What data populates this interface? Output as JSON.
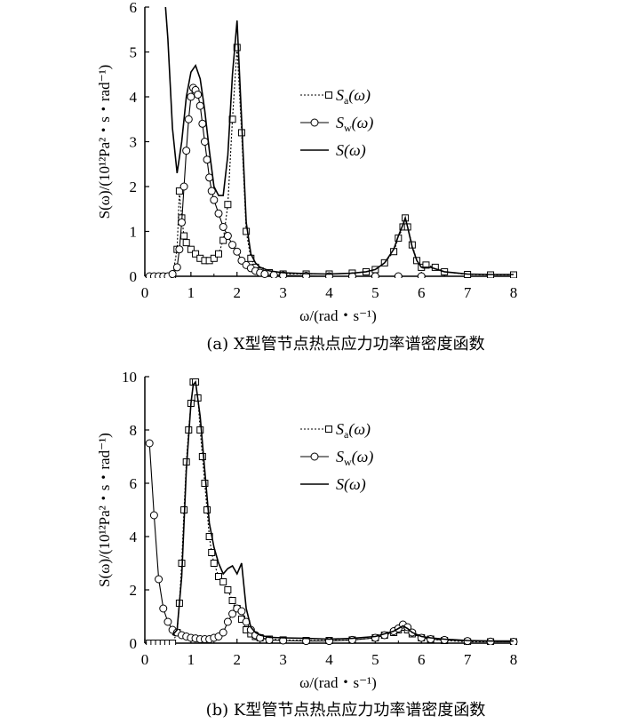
{
  "chart_data": [
    {
      "type": "line",
      "panel": "a",
      "caption": "(a) X型管节点热点应力功率谱密度函数",
      "xlabel": "ω/(rad・s⁻¹)",
      "ylabel": "S(ω)/(10¹²Pa²・s・rad⁻¹)",
      "xlim": [
        0,
        8
      ],
      "ylim": [
        0,
        6
      ],
      "xticks": [
        "0",
        "1",
        "2",
        "3",
        "4",
        "5",
        "6",
        "7",
        "8"
      ],
      "yticks": [
        "0",
        "1",
        "2",
        "3",
        "4",
        "5",
        "6"
      ],
      "legend_position": "upper-right",
      "series": [
        {
          "name": "Sa(ω)",
          "style": "dotted-square",
          "points": [
            [
              0.4,
              0
            ],
            [
              0.5,
              0
            ],
            [
              0.6,
              0
            ],
            [
              0.7,
              0.6
            ],
            [
              0.75,
              1.9
            ],
            [
              0.8,
              1.3
            ],
            [
              0.85,
              0.9
            ],
            [
              0.9,
              0.75
            ],
            [
              1.0,
              0.6
            ],
            [
              1.1,
              0.5
            ],
            [
              1.2,
              0.4
            ],
            [
              1.3,
              0.35
            ],
            [
              1.4,
              0.35
            ],
            [
              1.5,
              0.4
            ],
            [
              1.6,
              0.5
            ],
            [
              1.7,
              0.8
            ],
            [
              1.8,
              1.6
            ],
            [
              1.9,
              3.5
            ],
            [
              2.0,
              5.1
            ],
            [
              2.1,
              3.2
            ],
            [
              2.2,
              1.0
            ],
            [
              2.3,
              0.4
            ],
            [
              2.4,
              0.2
            ],
            [
              2.5,
              0.12
            ],
            [
              2.7,
              0.08
            ],
            [
              3.0,
              0.05
            ],
            [
              3.5,
              0.05
            ],
            [
              4.0,
              0.05
            ],
            [
              4.5,
              0.07
            ],
            [
              4.8,
              0.1
            ],
            [
              5.0,
              0.15
            ],
            [
              5.2,
              0.3
            ],
            [
              5.4,
              0.55
            ],
            [
              5.5,
              0.85
            ],
            [
              5.6,
              1.1
            ],
            [
              5.65,
              1.3
            ],
            [
              5.7,
              1.1
            ],
            [
              5.8,
              0.7
            ],
            [
              5.9,
              0.35
            ],
            [
              6.0,
              0.2
            ],
            [
              6.1,
              0.25
            ],
            [
              6.3,
              0.2
            ],
            [
              6.5,
              0.1
            ],
            [
              7.0,
              0.04
            ],
            [
              7.5,
              0.03
            ],
            [
              8.0,
              0.03
            ]
          ]
        },
        {
          "name": "Sw(ω)",
          "style": "solid-circle",
          "points": [
            [
              0.1,
              0
            ],
            [
              0.2,
              0
            ],
            [
              0.3,
              0
            ],
            [
              0.4,
              0
            ],
            [
              0.5,
              0
            ],
            [
              0.6,
              0.05
            ],
            [
              0.7,
              0.2
            ],
            [
              0.75,
              0.6
            ],
            [
              0.8,
              1.2
            ],
            [
              0.85,
              2.0
            ],
            [
              0.9,
              2.8
            ],
            [
              0.95,
              3.5
            ],
            [
              1.0,
              4.0
            ],
            [
              1.05,
              4.2
            ],
            [
              1.1,
              4.15
            ],
            [
              1.15,
              4.05
            ],
            [
              1.2,
              3.8
            ],
            [
              1.25,
              3.4
            ],
            [
              1.3,
              3.0
            ],
            [
              1.35,
              2.6
            ],
            [
              1.4,
              2.2
            ],
            [
              1.45,
              1.9
            ],
            [
              1.5,
              1.7
            ],
            [
              1.6,
              1.4
            ],
            [
              1.7,
              1.1
            ],
            [
              1.8,
              0.9
            ],
            [
              1.9,
              0.7
            ],
            [
              2.0,
              0.55
            ],
            [
              2.1,
              0.35
            ],
            [
              2.2,
              0.25
            ],
            [
              2.3,
              0.18
            ],
            [
              2.4,
              0.12
            ],
            [
              2.5,
              0.08
            ],
            [
              2.6,
              0.05
            ],
            [
              2.8,
              0.03
            ],
            [
              3.0,
              0.02
            ],
            [
              3.5,
              0.01
            ],
            [
              4.0,
              0
            ],
            [
              4.5,
              0
            ],
            [
              5.0,
              0
            ],
            [
              5.5,
              0
            ],
            [
              6.0,
              0
            ]
          ]
        },
        {
          "name": "S(ω)",
          "style": "solid",
          "points": [
            [
              0.45,
              6.0
            ],
            [
              0.5,
              5.3
            ],
            [
              0.55,
              4.3
            ],
            [
              0.6,
              3.3
            ],
            [
              0.7,
              2.3
            ],
            [
              0.8,
              3.0
            ],
            [
              0.9,
              4.0
            ],
            [
              1.0,
              4.55
            ],
            [
              1.1,
              4.7
            ],
            [
              1.2,
              4.4
            ],
            [
              1.3,
              3.7
            ],
            [
              1.4,
              2.8
            ],
            [
              1.5,
              2.0
            ],
            [
              1.6,
              1.8
            ],
            [
              1.7,
              1.8
            ],
            [
              1.8,
              2.7
            ],
            [
              1.9,
              4.5
            ],
            [
              2.0,
              5.7
            ],
            [
              2.1,
              3.5
            ],
            [
              2.2,
              1.2
            ],
            [
              2.3,
              0.5
            ],
            [
              2.4,
              0.3
            ],
            [
              2.5,
              0.2
            ],
            [
              2.7,
              0.12
            ],
            [
              3.0,
              0.08
            ],
            [
              3.5,
              0.06
            ],
            [
              4.0,
              0.05
            ],
            [
              4.5,
              0.07
            ],
            [
              4.8,
              0.1
            ],
            [
              5.0,
              0.15
            ],
            [
              5.2,
              0.3
            ],
            [
              5.4,
              0.6
            ],
            [
              5.5,
              0.9
            ],
            [
              5.6,
              1.15
            ],
            [
              5.65,
              1.3
            ],
            [
              5.7,
              1.1
            ],
            [
              5.8,
              0.65
            ],
            [
              5.9,
              0.35
            ],
            [
              6.0,
              0.2
            ],
            [
              6.2,
              0.2
            ],
            [
              6.5,
              0.1
            ],
            [
              7.0,
              0.05
            ],
            [
              7.5,
              0.04
            ],
            [
              8.0,
              0.04
            ]
          ]
        }
      ]
    },
    {
      "type": "line",
      "panel": "b",
      "caption": "(b) K型管节点热点应力功率谱密度函数",
      "xlabel": "ω/(rad・s⁻¹)",
      "ylabel": "S(ω)/(10¹²Pa²・s・rad⁻¹)",
      "xlim": [
        0,
        8
      ],
      "ylim": [
        0,
        10
      ],
      "xticks": [
        "0",
        "1",
        "2",
        "3",
        "4",
        "5",
        "6",
        "7",
        "8"
      ],
      "yticks": [
        "0",
        "2",
        "4",
        "6",
        "8",
        "10"
      ],
      "legend_position": "upper-right",
      "series": [
        {
          "name": "Sa(ω)",
          "style": "dotted-square",
          "points": [
            [
              0.1,
              0
            ],
            [
              0.2,
              0
            ],
            [
              0.3,
              0
            ],
            [
              0.4,
              0
            ],
            [
              0.5,
              0
            ],
            [
              0.6,
              0
            ],
            [
              0.7,
              0.4
            ],
            [
              0.75,
              1.5
            ],
            [
              0.8,
              3.0
            ],
            [
              0.85,
              5.0
            ],
            [
              0.9,
              6.8
            ],
            [
              0.95,
              8.0
            ],
            [
              1.0,
              9.0
            ],
            [
              1.05,
              9.8
            ],
            [
              1.1,
              9.8
            ],
            [
              1.15,
              9.2
            ],
            [
              1.2,
              8.0
            ],
            [
              1.25,
              7.0
            ],
            [
              1.3,
              6.0
            ],
            [
              1.35,
              5.0
            ],
            [
              1.4,
              4.0
            ],
            [
              1.45,
              3.4
            ],
            [
              1.5,
              3.0
            ],
            [
              1.6,
              2.5
            ],
            [
              1.7,
              2.3
            ],
            [
              1.8,
              2.0
            ],
            [
              1.9,
              1.6
            ],
            [
              2.0,
              1.3
            ],
            [
              2.1,
              0.9
            ],
            [
              2.2,
              0.5
            ],
            [
              2.3,
              0.35
            ],
            [
              2.4,
              0.25
            ],
            [
              2.5,
              0.2
            ],
            [
              2.7,
              0.15
            ],
            [
              3.0,
              0.12
            ],
            [
              3.5,
              0.1
            ],
            [
              4.0,
              0.1
            ],
            [
              4.5,
              0.12
            ],
            [
              5.0,
              0.2
            ],
            [
              5.2,
              0.3
            ],
            [
              5.4,
              0.4
            ],
            [
              5.5,
              0.5
            ],
            [
              5.6,
              0.6
            ],
            [
              5.7,
              0.5
            ],
            [
              5.8,
              0.35
            ],
            [
              6.0,
              0.2
            ],
            [
              6.2,
              0.15
            ],
            [
              6.5,
              0.1
            ],
            [
              7.0,
              0.05
            ],
            [
              7.5,
              0.05
            ],
            [
              8.0,
              0.05
            ]
          ]
        },
        {
          "name": "Sw(ω)",
          "style": "solid-circle",
          "points": [
            [
              0.1,
              7.5
            ],
            [
              0.2,
              4.8
            ],
            [
              0.3,
              2.4
            ],
            [
              0.4,
              1.3
            ],
            [
              0.5,
              0.8
            ],
            [
              0.6,
              0.5
            ],
            [
              0.7,
              0.4
            ],
            [
              0.8,
              0.3
            ],
            [
              0.9,
              0.25
            ],
            [
              1.0,
              0.2
            ],
            [
              1.1,
              0.18
            ],
            [
              1.2,
              0.15
            ],
            [
              1.3,
              0.15
            ],
            [
              1.4,
              0.15
            ],
            [
              1.5,
              0.2
            ],
            [
              1.6,
              0.25
            ],
            [
              1.7,
              0.4
            ],
            [
              1.8,
              0.8
            ],
            [
              1.9,
              1.1
            ],
            [
              2.0,
              1.3
            ],
            [
              2.1,
              1.2
            ],
            [
              2.2,
              0.8
            ],
            [
              2.3,
              0.5
            ],
            [
              2.4,
              0.3
            ],
            [
              2.5,
              0.2
            ],
            [
              2.7,
              0.12
            ],
            [
              3.0,
              0.1
            ],
            [
              3.5,
              0.08
            ],
            [
              4.0,
              0.08
            ],
            [
              4.5,
              0.12
            ],
            [
              5.0,
              0.2
            ],
            [
              5.2,
              0.3
            ],
            [
              5.4,
              0.45
            ],
            [
              5.5,
              0.55
            ],
            [
              5.6,
              0.7
            ],
            [
              5.7,
              0.6
            ],
            [
              5.8,
              0.4
            ],
            [
              6.0,
              0.2
            ],
            [
              6.2,
              0.15
            ],
            [
              6.5,
              0.12
            ],
            [
              7.0,
              0.08
            ],
            [
              7.5,
              0.06
            ],
            [
              8.0,
              0.05
            ]
          ]
        },
        {
          "name": "S(ω)",
          "style": "solid",
          "points": [
            [
              0.6,
              0.3
            ],
            [
              0.7,
              0.5
            ],
            [
              0.8,
              2.5
            ],
            [
              0.9,
              6.5
            ],
            [
              1.0,
              9.0
            ],
            [
              1.05,
              9.7
            ],
            [
              1.1,
              9.8
            ],
            [
              1.2,
              8.5
            ],
            [
              1.3,
              6.5
            ],
            [
              1.4,
              4.5
            ],
            [
              1.5,
              3.6
            ],
            [
              1.6,
              3.0
            ],
            [
              1.7,
              2.6
            ],
            [
              1.8,
              2.8
            ],
            [
              1.9,
              2.9
            ],
            [
              2.0,
              2.6
            ],
            [
              2.1,
              3.0
            ],
            [
              2.2,
              1.3
            ],
            [
              2.3,
              0.6
            ],
            [
              2.4,
              0.4
            ],
            [
              2.5,
              0.3
            ],
            [
              2.7,
              0.22
            ],
            [
              3.0,
              0.2
            ],
            [
              3.5,
              0.18
            ],
            [
              4.0,
              0.15
            ],
            [
              4.5,
              0.18
            ],
            [
              5.0,
              0.25
            ],
            [
              5.2,
              0.35
            ],
            [
              5.4,
              0.45
            ],
            [
              5.5,
              0.55
            ],
            [
              5.6,
              0.65
            ],
            [
              5.7,
              0.55
            ],
            [
              5.8,
              0.4
            ],
            [
              6.0,
              0.25
            ],
            [
              6.2,
              0.2
            ],
            [
              6.5,
              0.15
            ],
            [
              7.0,
              0.1
            ],
            [
              7.5,
              0.08
            ],
            [
              8.0,
              0.08
            ]
          ]
        }
      ]
    }
  ],
  "legend_labels": {
    "sa": {
      "sym": "S",
      "sub": "a",
      "arg": "(ω)"
    },
    "sw": {
      "sym": "S",
      "sub": "w",
      "arg": "(ω)"
    },
    "s": {
      "sym": "S",
      "sub": "",
      "arg": "(ω)"
    }
  }
}
